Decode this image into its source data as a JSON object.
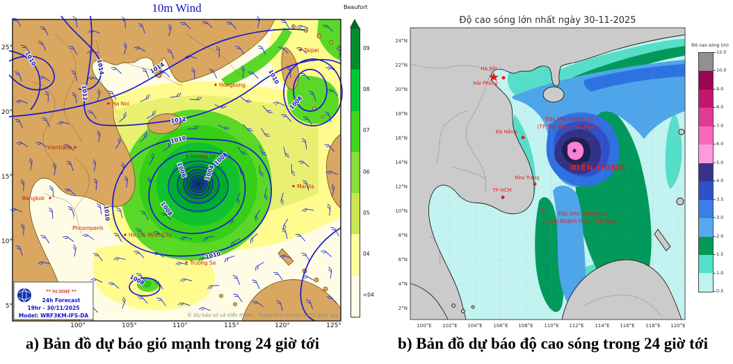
{
  "panel_a": {
    "title": "10m Wind",
    "caption": "a) Bản đồ dự báo gió mạnh trong 24 giờ tới",
    "x_ticks": [
      "100°",
      "105°",
      "110°",
      "115°",
      "120°",
      "125°"
    ],
    "y_ticks": [
      "25°",
      "20°",
      "15°",
      "10°",
      "5°"
    ],
    "colorbar": {
      "title": "Beaufort",
      "labels": [
        "09",
        "08",
        "07",
        "06",
        "05",
        "04",
        "<04"
      ],
      "colors": [
        "#008d2e",
        "#00c933",
        "#3fd61f",
        "#86df3c",
        "#cbe452",
        "#ffff99",
        "#fffde9"
      ]
    },
    "cities": [
      "Taipei",
      "Hongkong",
      "Ha Noi",
      "Vientiane",
      "Hoang Sa",
      "Bangkok",
      "Phnompenh",
      "Ho Chi Minh City",
      "Truong Sa",
      "Manila"
    ],
    "isobar_labels": {
      "i1014": "1014",
      "i1012": "1012",
      "i1010": "1010",
      "i1008": "1008",
      "i1006": "1006",
      "i1004": "1004"
    },
    "legend_box": {
      "org": "** NCHMF **",
      "line1": "24h Forecast",
      "line2": "19hr - 30/11/2025",
      "line3": "Model: WRF3KM-IFS-DA"
    },
    "credit": "© Dự báo số và Viễn thám – Trung tâm Dự báo KTTV quốc gia"
  },
  "panel_b": {
    "title": "Độ cao sóng lớn nhất ngày 30-11-2025",
    "caption": "b) Bản đồ dự báo độ cao sóng trong 24 giờ tới",
    "x_ticks": [
      "100°E",
      "102°E",
      "104°E",
      "106°E",
      "108°E",
      "110°E",
      "112°E",
      "114°E",
      "116°E",
      "118°E",
      "120°E"
    ],
    "y_ticks": [
      "24°N",
      "22°N",
      "20°N",
      "18°N",
      "16°N",
      "14°N",
      "12°N",
      "10°N",
      "8°N",
      "6°N",
      "4°N",
      "2°N"
    ],
    "colorbar": {
      "title": "Độ cao sóng (m)",
      "tick_labels": [
        "12.0",
        "10.0",
        "9.0",
        "8.0",
        "7.0",
        "6.0",
        "5.0",
        "4.0",
        "3.5",
        "3.0",
        "2.0",
        "1.5",
        "1.0",
        "0.5"
      ],
      "colors": [
        "#909090",
        "#9b0653",
        "#c3176e",
        "#e03a95",
        "#f966bc",
        "#fb9bdd",
        "#3a3288",
        "#2d51c8",
        "#3d7de8",
        "#55aaee",
        "#009a55",
        "#52e0c8",
        "#bdf2ef"
      ]
    },
    "cities": [
      "Hà Nội",
      "Hải Phòng",
      "Đà Nẵng",
      "Nha Trang",
      "TP HCM"
    ],
    "sea_labels": {
      "hoang_sa_1": "Đặc khu Hoàng Sa",
      "hoang_sa_2": "(TP. Đà Nẵng - Việt Nam)",
      "bien_dong": "BIỂN ĐÔNG",
      "truong_sa_1": "Đặc khu Trường Sa",
      "truong_sa_2": "(Tỉnh Khánh Hòa - Việt Nam)"
    }
  }
}
